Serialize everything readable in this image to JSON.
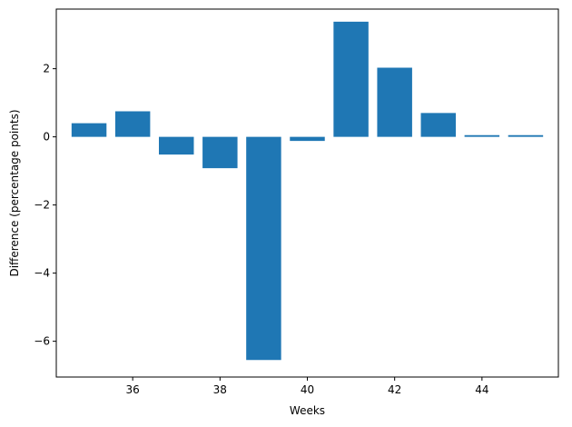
{
  "chart_data": {
    "type": "bar",
    "title": "",
    "xlabel": "Weeks",
    "ylabel": "Difference (percentage points)",
    "x": [
      35,
      36,
      37,
      38,
      39,
      40,
      41,
      42,
      43,
      44,
      45
    ],
    "values": [
      0.4,
      0.75,
      -0.52,
      -0.92,
      -6.55,
      -0.12,
      3.38,
      2.03,
      0.7,
      0.05,
      0.05
    ],
    "bar_color": "#1f77b4",
    "xlim": [
      34.25,
      45.75
    ],
    "ylim": [
      -7.05,
      3.75
    ],
    "xticks": [
      36,
      38,
      40,
      42,
      44
    ],
    "yticks": [
      -6,
      -4,
      -2,
      0,
      2
    ],
    "ytick_labels": [
      "−6",
      "−4",
      "−2",
      "0",
      "2"
    ],
    "grid": false,
    "legend": "none"
  }
}
